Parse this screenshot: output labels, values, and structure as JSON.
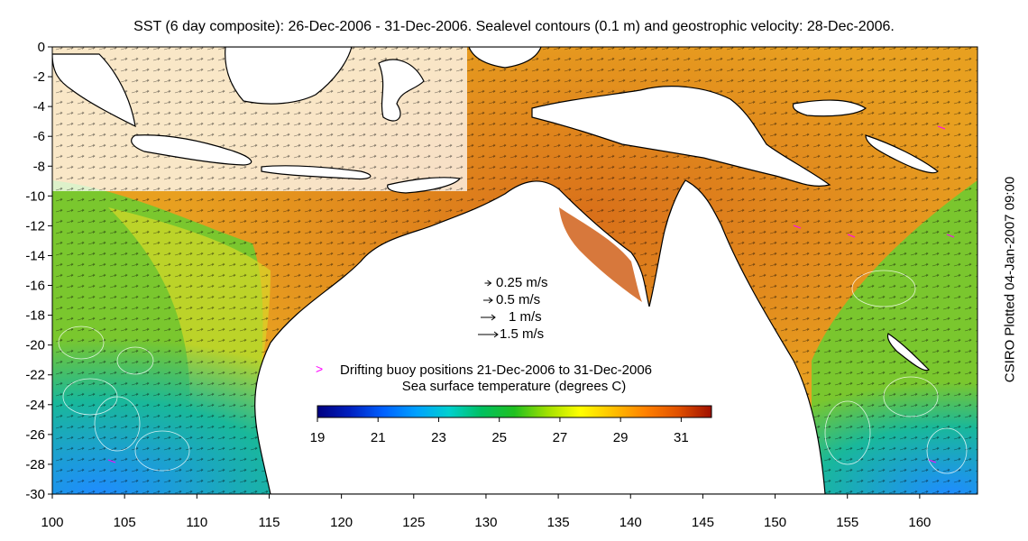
{
  "title": "SST (6 day composite): 26-Dec-2006 - 31-Dec-2006. Sealevel contours (0.1 m) and geostrophic velocity: 28-Dec-2006.",
  "credit": "CSIRO Plotted 04-Jan-2007 09:00",
  "axes": {
    "x_ticks": [
      "100",
      "105",
      "110",
      "115",
      "120",
      "125",
      "130",
      "135",
      "140",
      "145",
      "150",
      "155",
      "160"
    ],
    "y_ticks": [
      "0",
      "-2",
      "-4",
      "-6",
      "-8",
      "-10",
      "-12",
      "-14",
      "-16",
      "-18",
      "-20",
      "-22",
      "-24",
      "-26",
      "-28",
      "-30"
    ],
    "lon_range": [
      100,
      164
    ],
    "lat_range": [
      -30,
      0
    ]
  },
  "velocity_legend": [
    {
      "label": "0.25 m/s",
      "speed": 0.25
    },
    {
      "label": "0.5 m/s",
      "speed": 0.5
    },
    {
      "label": "1 m/s",
      "speed": 1
    },
    {
      "label": "1.5 m/s",
      "speed": 1.5
    }
  ],
  "buoy_legend": {
    "symbol": ">",
    "label": "Drifting buoy positions 21-Dec-2006 to 31-Dec-2006",
    "color": "#ff00ff"
  },
  "colorbar": {
    "title": "Sea surface temperature (degrees C)",
    "tick_labels": [
      "19",
      "21",
      "23",
      "25",
      "27",
      "29",
      "31"
    ],
    "range": [
      19,
      32
    ],
    "colors": [
      "#000080",
      "#0020c0",
      "#0060ff",
      "#00a0ff",
      "#00d0d0",
      "#00c060",
      "#20c020",
      "#a0e000",
      "#ffff00",
      "#ffc000",
      "#ff8000",
      "#e05000",
      "#a01000"
    ]
  },
  "land_color": "#ffffff",
  "coast_color": "#000000"
}
